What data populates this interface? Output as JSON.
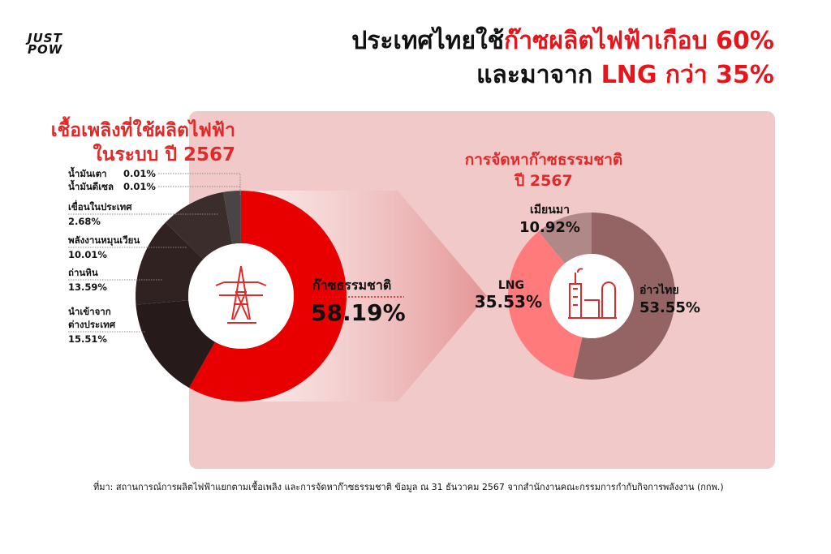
{
  "logo": {
    "line1": "JUST",
    "line2": "POW"
  },
  "title": {
    "line1_a": "ประเทศไทยใช้",
    "line1_b": "ก๊าซผลิตไฟฟ้าเกือบ 60%",
    "line2_a": "และมาจาก ",
    "line2_b": "LNG กว่า 35%"
  },
  "colors": {
    "red": "#e8141c",
    "panel": "#f2c9c9"
  },
  "chart_data": [
    {
      "type": "pie",
      "title": "เชื้อเพลิงที่ใช้ผลิตไฟฟ้า ในระบบ ปี 2567",
      "title_line1": "เชื้อเพลิงที่ใช้ผลิตไฟฟ้า",
      "title_line2": "ในระบบ ปี 2567",
      "unit": "%",
      "slices": [
        {
          "label": "ก๊าซธรรมชาติ",
          "value": 58.19,
          "display": "58.19%",
          "color": "#e80000"
        },
        {
          "label": "นำเข้าจากต่างประเทศ",
          "label_line1": "นำเข้าจาก",
          "label_line2": "ต่างประเทศ",
          "value": 15.51,
          "display": "15.51%",
          "color": "#261a1a"
        },
        {
          "label": "ถ่านหิน",
          "value": 13.59,
          "display": "13.59%",
          "color": "#312222"
        },
        {
          "label": "พลังงานหมุนเวียน",
          "value": 10.01,
          "display": "10.01%",
          "color": "#3c2d2d"
        },
        {
          "label": "เขื่อนในประเทศ",
          "value": 2.68,
          "display": "2.68%",
          "color": "#4a4444"
        },
        {
          "label": "น้ำมันดีเซล",
          "value": 0.01,
          "display": "0.01%",
          "color": "#555"
        },
        {
          "label": "น้ำมันเตา",
          "value": 0.01,
          "display": "0.01%",
          "color": "#555"
        }
      ]
    },
    {
      "type": "pie",
      "title": "การจัดหาก๊าซธรรมชาติ ปี 2567",
      "title_line1": "การจัดหาก๊าซธรรมชาติ",
      "title_line2": "ปี 2567",
      "unit": "%",
      "slices": [
        {
          "label": "อ่าวไทย",
          "value": 53.55,
          "display": "53.55%",
          "color": "#946464"
        },
        {
          "label": "LNG",
          "value": 35.53,
          "display": "35.53%",
          "color": "#ff7b7b"
        },
        {
          "label": "เมียนมา",
          "value": 10.92,
          "display": "10.92%",
          "color": "#b08888"
        }
      ]
    }
  ],
  "source": "ที่มา: สถานการณ์การผลิตไฟฟ้าแยกตามเชื้อเพลิง และการจัดหาก๊าซธรรมชาติ ข้อมูล ณ 31 ธันวาคม 2567 จากสำนักงานคณะกรรมการกำกับกิจการพลังงาน (กกพ.)"
}
